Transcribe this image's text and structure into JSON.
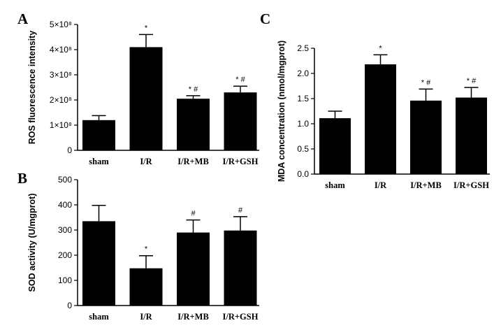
{
  "chart_data": [
    {
      "panel": "A",
      "type": "bar",
      "categories": [
        "sham",
        "I/R",
        "I/R+MB",
        "I/R+GSH"
      ],
      "values": [
        120000000.0,
        410000000.0,
        205000000.0,
        230000000.0
      ],
      "errors": [
        18000000.0,
        50000000.0,
        12000000.0,
        25000000.0
      ],
      "annotations": [
        "",
        "*",
        "* #",
        "* #"
      ],
      "ylabel": "ROS fluorescence intensity",
      "ylim": [
        0,
        500000000.0
      ],
      "yticks": [
        0,
        100000000.0,
        200000000.0,
        300000000.0,
        400000000.0,
        500000000.0
      ],
      "ytick_labels": [
        "0",
        "1×10⁸",
        "2×10⁸",
        "3×10⁸",
        "4×10⁸",
        "5×10⁸"
      ],
      "color": "#000000"
    },
    {
      "panel": "B",
      "type": "bar",
      "categories": [
        "sham",
        "I/R",
        "I/R+MB",
        "I/R+GSH"
      ],
      "values": [
        335,
        148,
        290,
        298
      ],
      "errors": [
        63,
        50,
        50,
        55
      ],
      "annotations": [
        "",
        "*",
        "#",
        "#"
      ],
      "ylabel": "SOD activity (U/mgprot)",
      "ylim": [
        0,
        500
      ],
      "yticks": [
        0,
        100,
        200,
        300,
        400,
        500
      ],
      "ytick_labels": [
        "0",
        "100",
        "200",
        "300",
        "400",
        "500"
      ],
      "color": "#000000"
    },
    {
      "panel": "C",
      "type": "bar",
      "categories": [
        "sham",
        "I/R",
        "I/R+MB",
        "I/R+GSH"
      ],
      "values": [
        1.11,
        2.18,
        1.46,
        1.52
      ],
      "errors": [
        0.14,
        0.19,
        0.23,
        0.2
      ],
      "annotations": [
        "",
        "*",
        "* #",
        "* #"
      ],
      "ylabel": "MDA concentration (nmol/mgprot)",
      "ylim": [
        0,
        2.5
      ],
      "yticks": [
        0,
        0.5,
        1.0,
        1.5,
        2.0,
        2.5
      ],
      "ytick_labels": [
        "0.0",
        "0.5",
        "1.0",
        "1.5",
        "2.0",
        "2.5"
      ],
      "color": "#000000"
    }
  ]
}
